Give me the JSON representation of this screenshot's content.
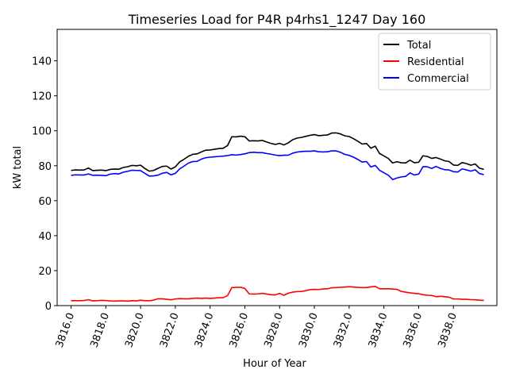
{
  "chart_data": {
    "type": "line",
    "title": "Timeseries Load for P4R p4rhs1_1247  Day 160",
    "xlabel": "Hour of Year",
    "ylabel": "kW total",
    "xlim": [
      3815.2,
      3840.5
    ],
    "ylim": [
      0,
      158
    ],
    "x_ticks": [
      3816,
      3818,
      3820,
      3822,
      3824,
      3826,
      3828,
      3830,
      3832,
      3834,
      3836,
      3838
    ],
    "x_tick_labels": [
      "3816.0",
      "3818.0",
      "3820.0",
      "3822.0",
      "3824.0",
      "3826.0",
      "3828.0",
      "3830.0",
      "3832.0",
      "3834.0",
      "3836.0",
      "3838.0"
    ],
    "y_ticks": [
      0,
      20,
      40,
      60,
      80,
      100,
      120,
      140
    ],
    "y_tick_labels": [
      "0",
      "20",
      "40",
      "60",
      "80",
      "100",
      "120",
      "140"
    ],
    "grid": false,
    "legend_position": "top-right",
    "x_start": 3816,
    "x_step": 0.25,
    "series": [
      {
        "name": "Total",
        "color": "#000000",
        "values": [
          77.3,
          77.6,
          77.5,
          77.6,
          78.7,
          77.2,
          77.4,
          77.5,
          77.2,
          77.9,
          78.1,
          78.0,
          79.0,
          79.4,
          80.2,
          80.0,
          80.3,
          78.4,
          76.9,
          77.3,
          78.5,
          79.6,
          79.8,
          78.1,
          79.4,
          82.2,
          83.7,
          85.4,
          86.5,
          86.8,
          87.9,
          88.9,
          89.0,
          89.4,
          89.8,
          90.0,
          91.5,
          96.6,
          96.5,
          96.9,
          96.6,
          94.2,
          94.3,
          94.2,
          94.5,
          93.6,
          92.8,
          92.2,
          92.8,
          91.9,
          93.1,
          94.9,
          95.8,
          96.2,
          96.8,
          97.4,
          97.8,
          97.2,
          97.4,
          97.6,
          98.7,
          98.8,
          98.2,
          97.1,
          96.7,
          95.5,
          94.0,
          92.4,
          92.7,
          90.0,
          91.2,
          87.0,
          85.6,
          84.2,
          81.6,
          82.3,
          81.7,
          81.6,
          83.2,
          81.7,
          82.0,
          85.7,
          85.3,
          84.2,
          84.7,
          83.8,
          82.8,
          82.4,
          80.4,
          80.2,
          81.8,
          81.2,
          80.3,
          81.0,
          78.6,
          77.9
        ]
      },
      {
        "name": "Residential",
        "color": "#ff0000",
        "values": [
          2.8,
          2.8,
          2.8,
          2.9,
          3.4,
          2.7,
          2.8,
          3.0,
          2.9,
          2.7,
          2.6,
          2.7,
          2.7,
          2.6,
          2.8,
          2.7,
          3.1,
          2.8,
          2.8,
          3.1,
          3.9,
          3.9,
          3.6,
          3.3,
          3.8,
          4.0,
          3.9,
          3.9,
          4.1,
          4.3,
          4.1,
          4.3,
          4.1,
          4.3,
          4.5,
          4.5,
          5.7,
          10.3,
          10.4,
          10.5,
          9.8,
          6.7,
          6.6,
          6.7,
          7.0,
          6.6,
          6.2,
          6.1,
          7.0,
          5.9,
          7.1,
          7.7,
          8.0,
          8.1,
          8.5,
          9.1,
          9.3,
          9.2,
          9.5,
          9.6,
          10.2,
          10.3,
          10.5,
          10.6,
          10.8,
          10.6,
          10.4,
          10.3,
          10.3,
          10.7,
          11.0,
          9.6,
          9.6,
          9.6,
          9.5,
          9.3,
          8.1,
          7.7,
          7.3,
          7.0,
          6.8,
          6.2,
          5.9,
          5.8,
          5.1,
          5.3,
          5.1,
          4.8,
          3.8,
          3.8,
          3.6,
          3.6,
          3.4,
          3.3,
          3.1,
          3.0
        ]
      },
      {
        "name": "Commercial",
        "color": "#0000ff",
        "values": [
          74.5,
          74.8,
          74.7,
          74.7,
          75.3,
          74.5,
          74.6,
          74.5,
          74.3,
          75.2,
          75.5,
          75.3,
          76.3,
          76.8,
          77.4,
          77.3,
          77.2,
          75.6,
          74.1,
          74.2,
          74.6,
          75.7,
          76.2,
          74.8,
          75.6,
          78.2,
          79.8,
          81.5,
          82.4,
          82.5,
          83.8,
          84.6,
          84.9,
          85.1,
          85.3,
          85.5,
          85.8,
          86.3,
          86.1,
          86.4,
          86.8,
          87.5,
          87.7,
          87.5,
          87.5,
          87.0,
          86.6,
          86.1,
          85.8,
          86.0,
          86.0,
          87.2,
          87.8,
          88.1,
          88.3,
          88.3,
          88.5,
          88.0,
          87.9,
          88.0,
          88.5,
          88.5,
          87.7,
          86.5,
          85.9,
          84.9,
          83.6,
          82.1,
          82.4,
          79.3,
          80.2,
          77.4,
          76.0,
          74.6,
          72.1,
          73.0,
          73.6,
          73.9,
          75.9,
          74.7,
          75.2,
          79.5,
          79.4,
          78.4,
          79.6,
          78.5,
          77.7,
          77.6,
          76.6,
          76.4,
          78.2,
          77.6,
          76.9,
          77.7,
          75.5,
          74.9
        ]
      }
    ]
  }
}
